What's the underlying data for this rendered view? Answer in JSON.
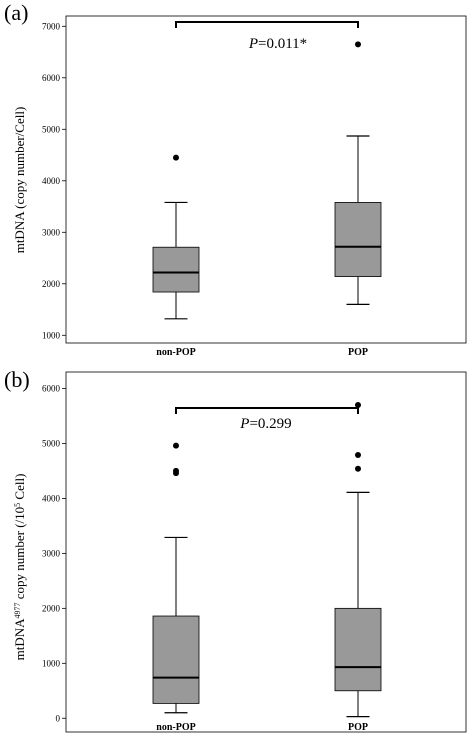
{
  "chart_data": [
    {
      "panel_label": "(a)",
      "type": "boxplot",
      "categories": [
        "non-POP",
        "POP"
      ],
      "ylabel": "mtDNA (copy number/Cell)",
      "ylim": [
        850,
        7200
      ],
      "yticks": [
        1000,
        2000,
        3000,
        4000,
        5000,
        6000,
        7000
      ],
      "boxes": [
        {
          "category": "non-POP",
          "min": 1320,
          "q1": 1840,
          "median": 2220,
          "q3": 2710,
          "max": 3580,
          "outliers": [
            4450
          ]
        },
        {
          "category": "POP",
          "min": 1600,
          "q1": 2140,
          "median": 2720,
          "q3": 3580,
          "max": 4870,
          "outliers": [
            6650
          ]
        }
      ],
      "annotation": {
        "prefix": "P",
        "text": "=0.011*"
      },
      "box_color": "#999999",
      "grid": false
    },
    {
      "panel_label": "(b)",
      "type": "boxplot",
      "categories": [
        "non-POP",
        "POP"
      ],
      "ylabel_main": "mtDNA",
      "ylabel_sup": "4977",
      "ylabel_mid": " copy number (/10",
      "ylabel_sup2": "5",
      "ylabel_end": " Cell)",
      "ylim": [
        -250,
        6300
      ],
      "yticks": [
        0,
        1000,
        2000,
        3000,
        4000,
        5000,
        6000
      ],
      "boxes": [
        {
          "category": "non-POP",
          "min": 100,
          "q1": 270,
          "median": 740,
          "q3": 1860,
          "max": 3290,
          "outliers": [
            4460,
            4500,
            4960
          ]
        },
        {
          "category": "POP",
          "min": 30,
          "q1": 500,
          "median": 930,
          "q3": 2000,
          "max": 4110,
          "outliers": [
            4540,
            4790,
            5700
          ]
        }
      ],
      "annotation": {
        "prefix": "P",
        "text": "=0.299"
      },
      "box_color": "#999999",
      "grid": false
    }
  ]
}
